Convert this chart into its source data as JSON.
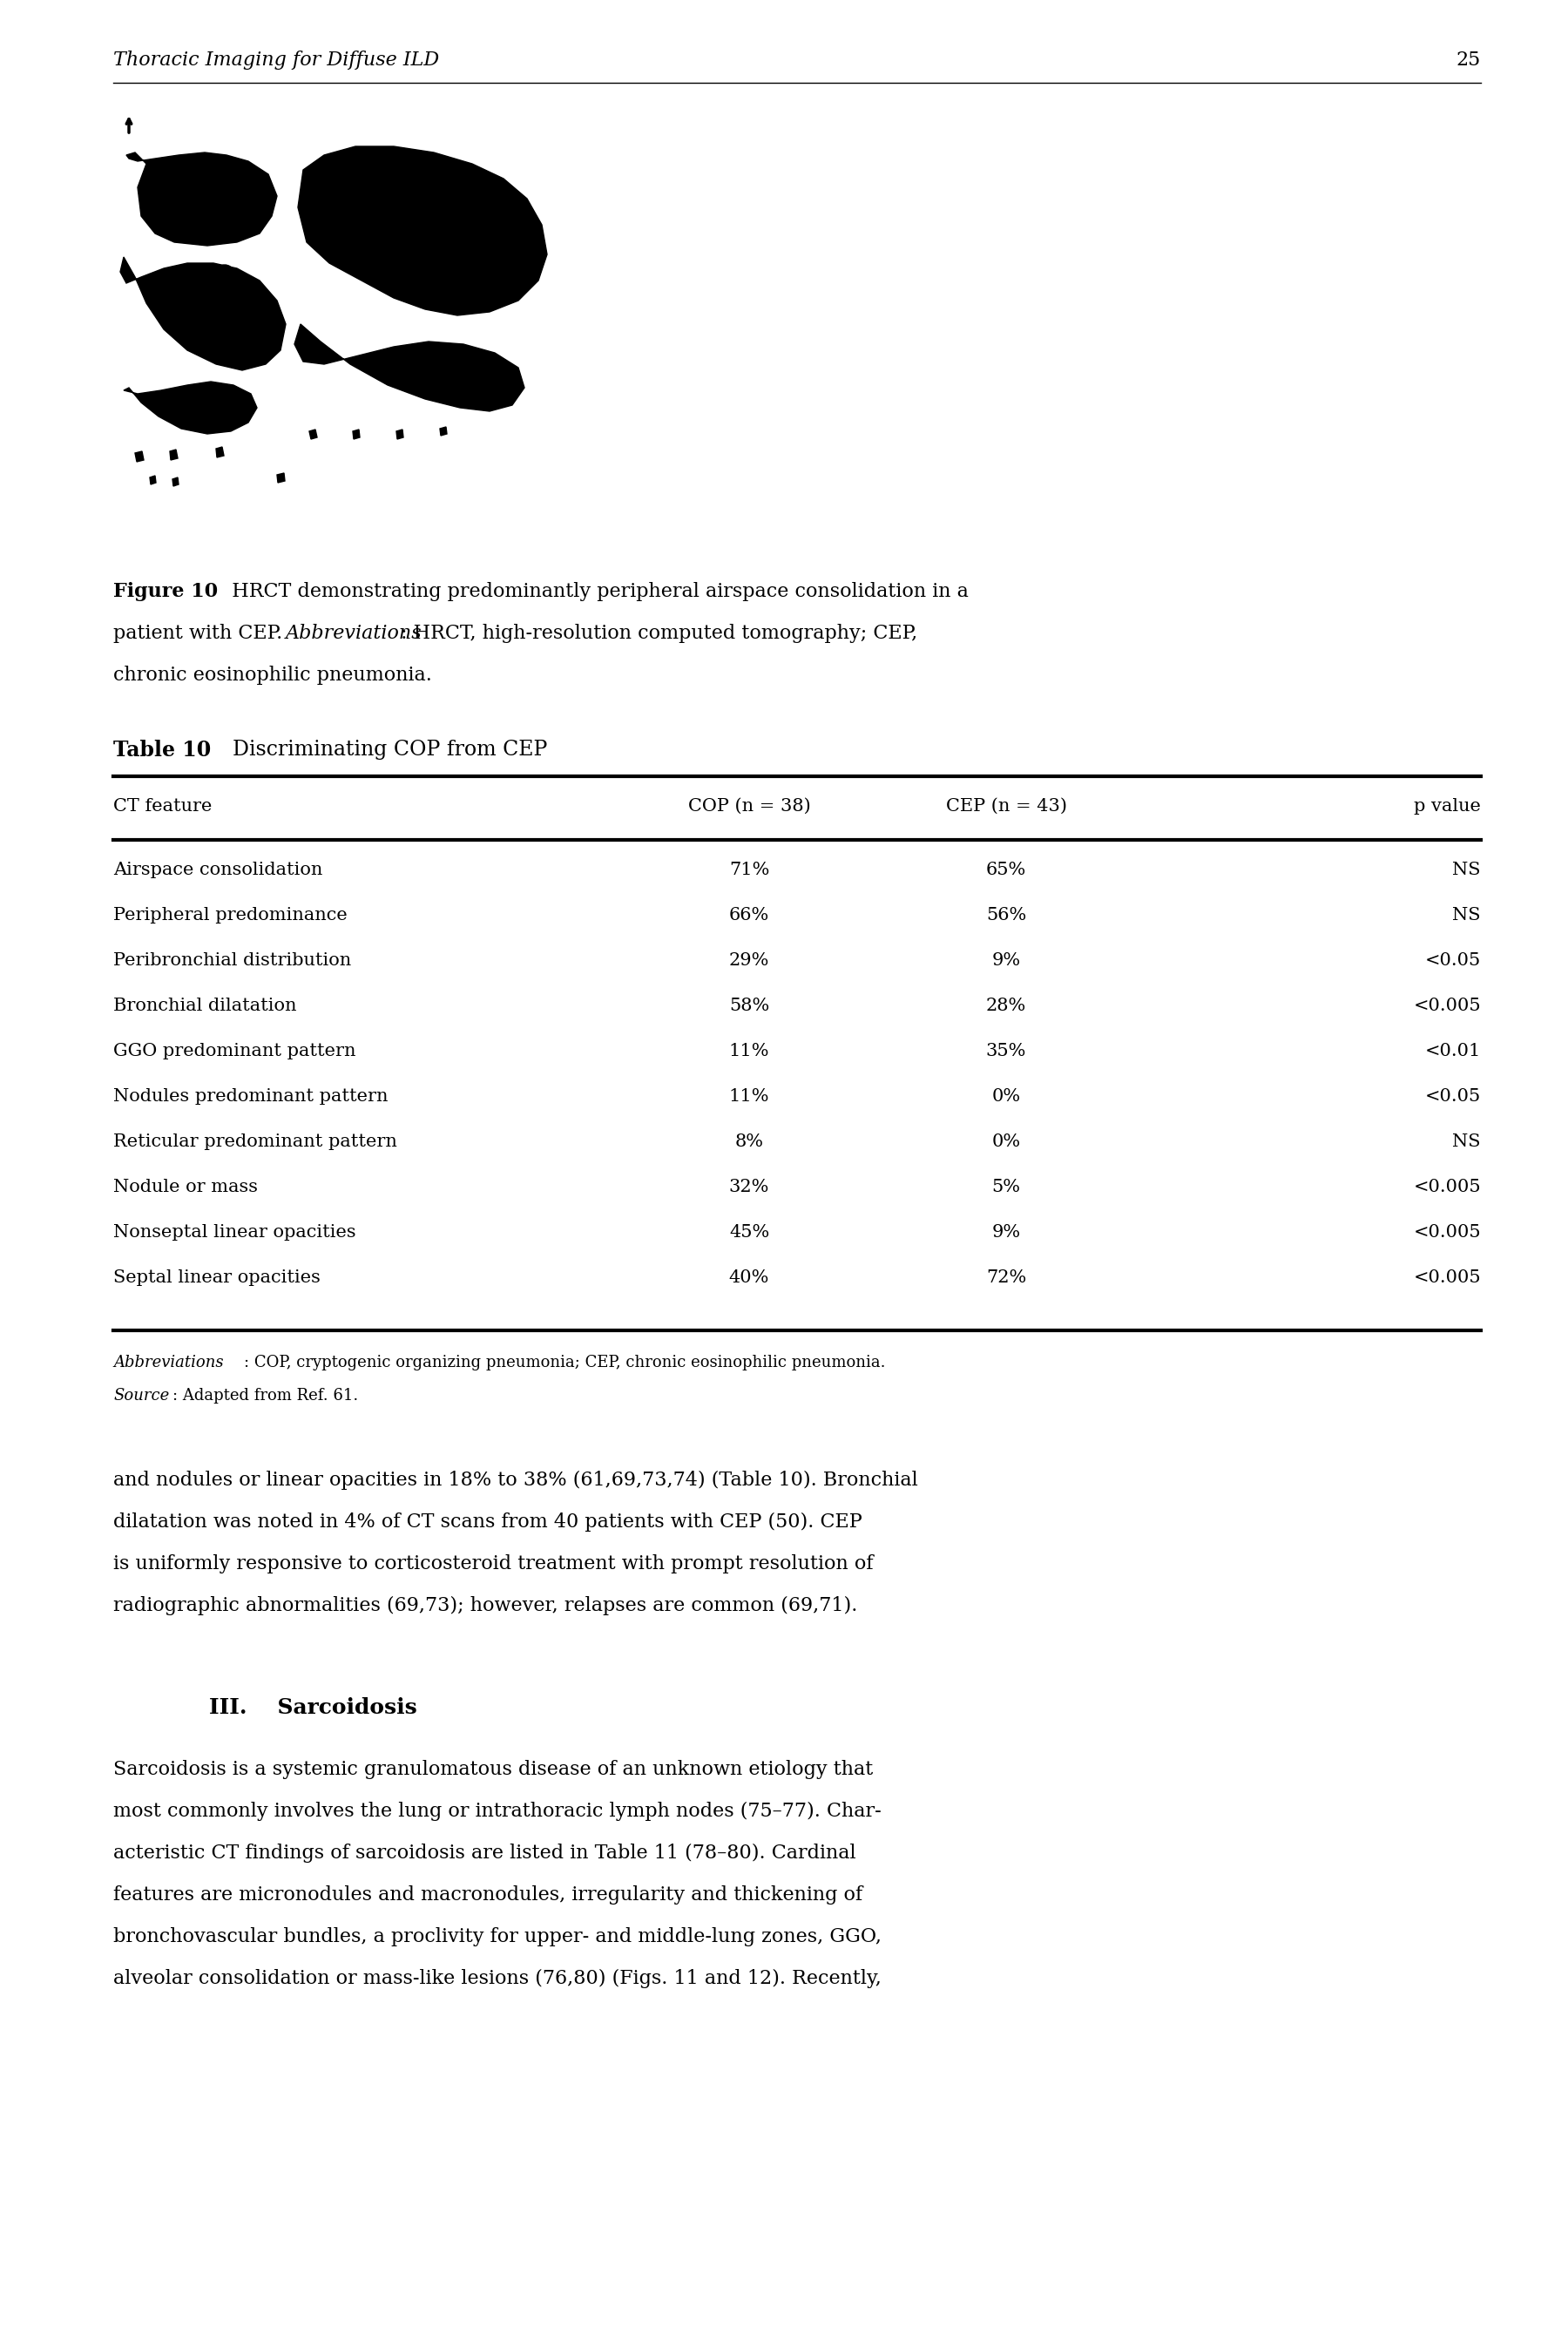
{
  "page_title": "Thoracic Imaging for Diffuse ILD",
  "page_number": "25",
  "table_headers": [
    "CT feature",
    "COP (n = 38)",
    "CEP (n = 43)",
    "p value"
  ],
  "table_rows": [
    [
      "Airspace consolidation",
      "71%",
      "65%",
      "NS"
    ],
    [
      "Peripheral predominance",
      "66%",
      "56%",
      "NS"
    ],
    [
      "Peribronchial distribution",
      "29%",
      "9%",
      "<0.05"
    ],
    [
      "Bronchial dilatation",
      "58%",
      "28%",
      "<0.005"
    ],
    [
      "GGO predominant pattern",
      "11%",
      "35%",
      "<0.01"
    ],
    [
      "Nodules predominant pattern",
      "11%",
      "0%",
      "<0.05"
    ],
    [
      "Reticular predominant pattern",
      "8%",
      "0%",
      "NS"
    ],
    [
      "Nodule or mass",
      "32%",
      "5%",
      "<0.005"
    ],
    [
      "Nonseptal linear opacities",
      "45%",
      "9%",
      "<0.005"
    ],
    [
      "Septal linear opacities",
      "40%",
      "72%",
      "<0.005"
    ]
  ],
  "body_lines": [
    "and nodules or linear opacities in 18% to 38% (61,69,73,74) (Table 10). Bronchial",
    "dilatation was noted in 4% of CT scans from 40 patients with CEP (50). CEP",
    "is uniformly responsive to corticosteroid treatment with prompt resolution of",
    "radiographic abnormalities (69,73); however, relapses are common (69,71)."
  ],
  "sec_lines": [
    "Sarcoidosis is a systemic granulomatous disease of an unknown etiology that",
    "most commonly involves the lung or intrathoracic lymph nodes (75–77). Char-",
    "acteristic CT findings of sarcoidosis are listed in Table 11 (78–80). Cardinal",
    "features are micronodules and macronodules, irregularity and thickening of",
    "bronchovascular bundles, a proclivity for upper- and middle-lung zones, GGO,",
    "alveolar consolidation or mass-like lesions (76,80) (Figs. 11 and 12). Recently,"
  ],
  "bg_color": "#ffffff",
  "text_color": "#000000"
}
